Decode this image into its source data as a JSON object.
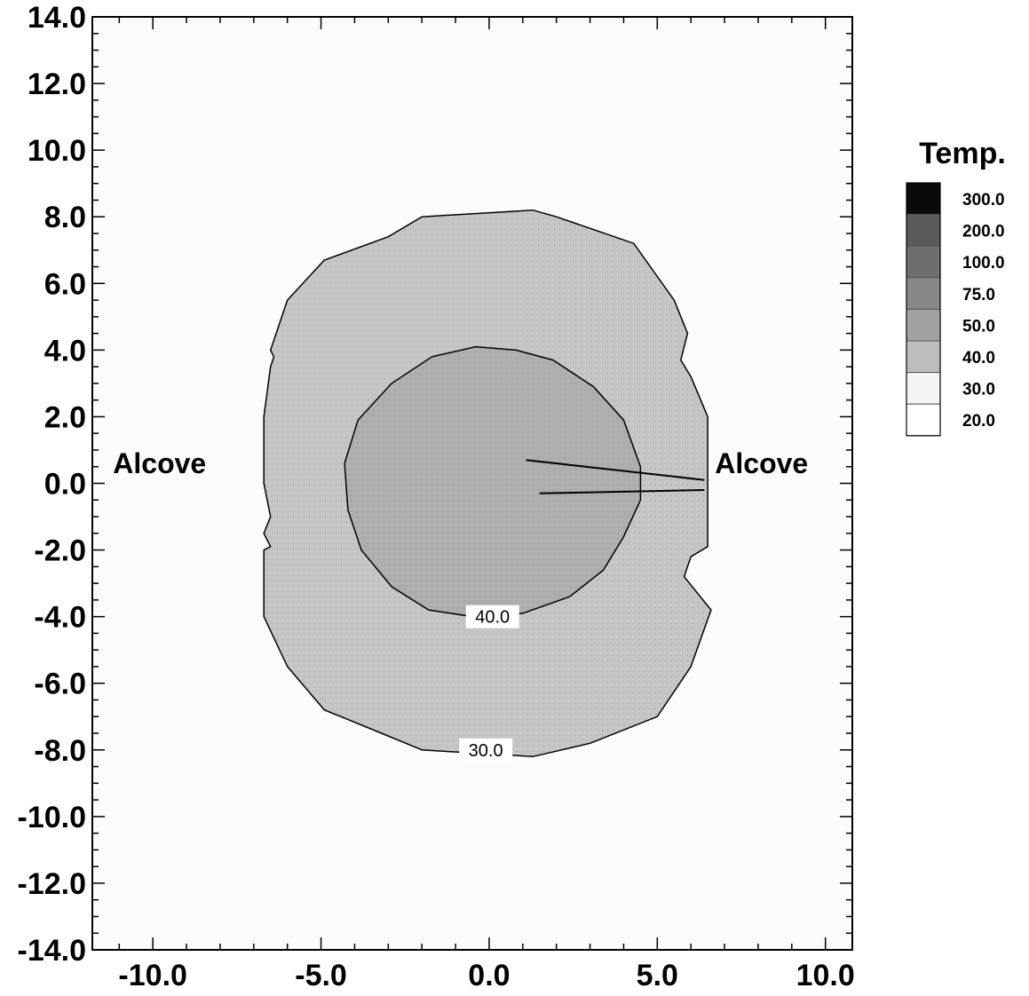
{
  "chart_data": {
    "type": "heatmap",
    "title": "",
    "xlabel": "",
    "ylabel": "",
    "xlim": [
      -11.8,
      10.8
    ],
    "ylim": [
      -14.0,
      14.0
    ],
    "x_ticks": [
      -10.0,
      -5.0,
      0.0,
      5.0,
      10.0
    ],
    "x_tick_labels": [
      "-10.0",
      "-5.0",
      "0.0",
      "5.0",
      "10.0"
    ],
    "y_ticks": [
      14.0,
      12.0,
      10.0,
      8.0,
      6.0,
      4.0,
      2.0,
      0.0,
      -2.0,
      -4.0,
      -6.0,
      -8.0,
      -10.0,
      -12.0,
      -14.0
    ],
    "y_tick_labels": [
      "14.0",
      "12.0",
      "10.0",
      "8.0",
      "6.0",
      "4.0",
      "2.0",
      "0.0",
      "-2.0",
      "-4.0",
      "-6.0",
      "-8.0",
      "-10.0",
      "-12.0",
      "-14.0"
    ],
    "grid": false,
    "legend": {
      "title": "Temp.",
      "placement": "right",
      "levels": [
        "300.0",
        "200.0",
        "100.0",
        "75.0",
        "50.0",
        "40.0",
        "30.0",
        "20.0"
      ],
      "colors": [
        "#0a0a0a",
        "#5a5a5a",
        "#6e6e6e",
        "#888888",
        "#a2a2a2",
        "#bdbdbd",
        "#f4f4f4",
        "#ffffff"
      ]
    },
    "regions": [
      {
        "level": "30.0",
        "label": "30.0",
        "fill": "#c6c6c6",
        "label_at": [
          -0.1,
          -8.0
        ],
        "boundary": [
          [
            -2.0,
            8.0
          ],
          [
            1.3,
            8.2
          ],
          [
            2.0,
            8.0
          ],
          [
            4.3,
            7.2
          ],
          [
            5.5,
            5.5
          ],
          [
            5.9,
            4.5
          ],
          [
            5.7,
            3.7
          ],
          [
            6.0,
            3.2
          ],
          [
            6.5,
            2.0
          ],
          [
            6.5,
            -1.9
          ],
          [
            6.0,
            -2.2
          ],
          [
            5.8,
            -2.8
          ],
          [
            6.6,
            -3.8
          ],
          [
            6.0,
            -5.5
          ],
          [
            5.0,
            -7.0
          ],
          [
            3.0,
            -7.8
          ],
          [
            1.3,
            -8.2
          ],
          [
            -2.0,
            -8.0
          ],
          [
            -3.2,
            -7.5
          ],
          [
            -4.9,
            -6.8
          ],
          [
            -6.0,
            -5.5
          ],
          [
            -6.7,
            -4.0
          ],
          [
            -6.7,
            -2.0
          ],
          [
            -6.5,
            -1.9
          ],
          [
            -6.7,
            -1.5
          ],
          [
            -6.5,
            -1.0
          ],
          [
            -6.7,
            0.0
          ],
          [
            -6.7,
            2.0
          ],
          [
            -6.5,
            3.5
          ],
          [
            -6.4,
            3.8
          ],
          [
            -6.5,
            4.0
          ],
          [
            -6.0,
            5.5
          ],
          [
            -4.9,
            6.7
          ],
          [
            -3.0,
            7.4
          ],
          [
            -2.0,
            8.0
          ]
        ]
      },
      {
        "level": "40.0",
        "label": "40.0",
        "fill": "#aeaeae",
        "label_at": [
          0.1,
          -4.0
        ],
        "boundary": [
          [
            -1.7,
            3.8
          ],
          [
            -0.4,
            4.1
          ],
          [
            0.8,
            4.0
          ],
          [
            1.9,
            3.7
          ],
          [
            3.1,
            2.9
          ],
          [
            4.0,
            1.9
          ],
          [
            4.5,
            0.5
          ],
          [
            4.5,
            -0.5
          ],
          [
            4.0,
            -1.6
          ],
          [
            3.4,
            -2.6
          ],
          [
            2.4,
            -3.4
          ],
          [
            1.0,
            -3.9
          ],
          [
            -0.5,
            -4.0
          ],
          [
            -1.8,
            -3.8
          ],
          [
            -2.9,
            -3.1
          ],
          [
            -3.8,
            -2.0
          ],
          [
            -4.2,
            -0.8
          ],
          [
            -4.3,
            0.6
          ],
          [
            -3.9,
            1.9
          ],
          [
            -2.9,
            3.0
          ],
          [
            -1.7,
            3.8
          ]
        ]
      }
    ],
    "lines": [
      {
        "points": [
          [
            1.1,
            0.7
          ],
          [
            6.4,
            0.1
          ]
        ]
      },
      {
        "points": [
          [
            1.5,
            -0.3
          ],
          [
            6.4,
            -0.2
          ]
        ]
      }
    ],
    "annotations": [
      {
        "text": "Alcove",
        "x": -9.8,
        "y": 0.6,
        "anchor": "middle"
      },
      {
        "text": "Alcove",
        "x": 8.1,
        "y": 0.6,
        "anchor": "middle"
      }
    ]
  }
}
